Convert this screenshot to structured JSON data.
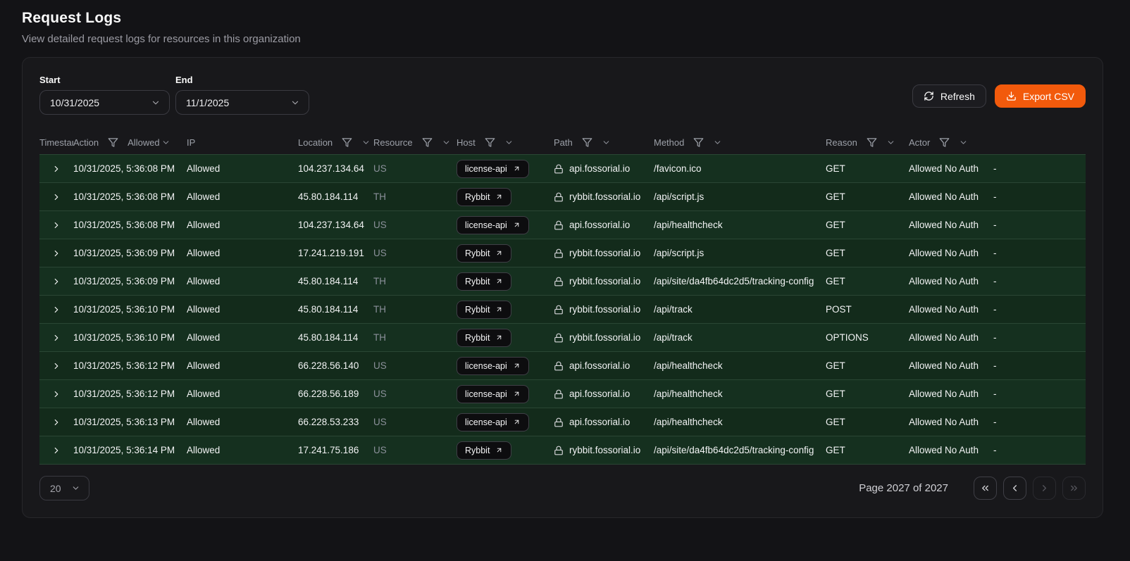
{
  "page": {
    "title": "Request Logs",
    "subtitle": "View detailed request logs for resources in this organization"
  },
  "filters": {
    "start_label": "Start",
    "start_value": "10/31/2025",
    "end_label": "End",
    "end_value": "11/1/2025"
  },
  "toolbar": {
    "refresh_label": "Refresh",
    "export_label": "Export CSV"
  },
  "table": {
    "columns": [
      {
        "key": "timestamp",
        "label": "Timestamp",
        "filter": false
      },
      {
        "key": "action",
        "label": "Action",
        "filter": true,
        "filter_value": "Allowed"
      },
      {
        "key": "ip",
        "label": "IP",
        "filter": false
      },
      {
        "key": "location",
        "label": "Location",
        "filter": true
      },
      {
        "key": "resource",
        "label": "Resource",
        "filter": true
      },
      {
        "key": "host",
        "label": "Host",
        "filter": true
      },
      {
        "key": "path",
        "label": "Path",
        "filter": true
      },
      {
        "key": "method",
        "label": "Method",
        "filter": true
      },
      {
        "key": "reason",
        "label": "Reason",
        "filter": true
      },
      {
        "key": "actor",
        "label": "Actor",
        "filter": true
      }
    ],
    "rows": [
      {
        "timestamp": "10/31/2025, 5:36:08 PM",
        "action": "Allowed",
        "ip": "104.237.134.64",
        "location": "US",
        "resource": "license-api",
        "host": "api.fossorial.io",
        "path": "/favicon.ico",
        "method": "GET",
        "reason": "Allowed No Auth",
        "actor": "-"
      },
      {
        "timestamp": "10/31/2025, 5:36:08 PM",
        "action": "Allowed",
        "ip": "45.80.184.114",
        "location": "TH",
        "resource": "Rybbit",
        "host": "rybbit.fossorial.io",
        "path": "/api/script.js",
        "method": "GET",
        "reason": "Allowed No Auth",
        "actor": "-"
      },
      {
        "timestamp": "10/31/2025, 5:36:08 PM",
        "action": "Allowed",
        "ip": "104.237.134.64",
        "location": "US",
        "resource": "license-api",
        "host": "api.fossorial.io",
        "path": "/api/healthcheck",
        "method": "GET",
        "reason": "Allowed No Auth",
        "actor": "-"
      },
      {
        "timestamp": "10/31/2025, 5:36:09 PM",
        "action": "Allowed",
        "ip": "17.241.219.191",
        "location": "US",
        "resource": "Rybbit",
        "host": "rybbit.fossorial.io",
        "path": "/api/script.js",
        "method": "GET",
        "reason": "Allowed No Auth",
        "actor": "-"
      },
      {
        "timestamp": "10/31/2025, 5:36:09 PM",
        "action": "Allowed",
        "ip": "45.80.184.114",
        "location": "TH",
        "resource": "Rybbit",
        "host": "rybbit.fossorial.io",
        "path": "/api/site/da4fb64dc2d5/tracking-config",
        "method": "GET",
        "reason": "Allowed No Auth",
        "actor": "-"
      },
      {
        "timestamp": "10/31/2025, 5:36:10 PM",
        "action": "Allowed",
        "ip": "45.80.184.114",
        "location": "TH",
        "resource": "Rybbit",
        "host": "rybbit.fossorial.io",
        "path": "/api/track",
        "method": "POST",
        "reason": "Allowed No Auth",
        "actor": "-"
      },
      {
        "timestamp": "10/31/2025, 5:36:10 PM",
        "action": "Allowed",
        "ip": "45.80.184.114",
        "location": "TH",
        "resource": "Rybbit",
        "host": "rybbit.fossorial.io",
        "path": "/api/track",
        "method": "OPTIONS",
        "reason": "Allowed No Auth",
        "actor": "-"
      },
      {
        "timestamp": "10/31/2025, 5:36:12 PM",
        "action": "Allowed",
        "ip": "66.228.56.140",
        "location": "US",
        "resource": "license-api",
        "host": "api.fossorial.io",
        "path": "/api/healthcheck",
        "method": "GET",
        "reason": "Allowed No Auth",
        "actor": "-"
      },
      {
        "timestamp": "10/31/2025, 5:36:12 PM",
        "action": "Allowed",
        "ip": "66.228.56.189",
        "location": "US",
        "resource": "license-api",
        "host": "api.fossorial.io",
        "path": "/api/healthcheck",
        "method": "GET",
        "reason": "Allowed No Auth",
        "actor": "-"
      },
      {
        "timestamp": "10/31/2025, 5:36:13 PM",
        "action": "Allowed",
        "ip": "66.228.53.233",
        "location": "US",
        "resource": "license-api",
        "host": "api.fossorial.io",
        "path": "/api/healthcheck",
        "method": "GET",
        "reason": "Allowed No Auth",
        "actor": "-"
      },
      {
        "timestamp": "10/31/2025, 5:36:14 PM",
        "action": "Allowed",
        "ip": "17.241.75.186",
        "location": "US",
        "resource": "Rybbit",
        "host": "rybbit.fossorial.io",
        "path": "/api/site/da4fb64dc2d5/tracking-config",
        "method": "GET",
        "reason": "Allowed No Auth",
        "actor": "-"
      }
    ]
  },
  "pagination": {
    "page_size": "20",
    "page_info": "Page 2027 of 2027",
    "first_enabled": true,
    "prev_enabled": true,
    "next_enabled": false,
    "last_enabled": false
  },
  "colors": {
    "accent_orange": "#f25a0c",
    "row_allowed_bg": "#15301f",
    "card_bg": "#18181b",
    "page_bg": "#131316"
  },
  "icons": {
    "refresh-icon": "circular-arrows",
    "export-icon": "download-arrow-tray",
    "filter-icon": "funnel",
    "column-chevron-icon": "chevron-down",
    "expand-row-icon": "chevron-right",
    "host-lock-icon": "padlock",
    "resource-link-icon": "arrow-up-right",
    "date-select-icon": "chevron-down",
    "page-size-icon": "chevron-down",
    "pager-first-icon": "double-chevron-left",
    "pager-prev-icon": "chevron-left",
    "pager-next-icon": "chevron-right",
    "pager-last-icon": "double-chevron-right"
  }
}
